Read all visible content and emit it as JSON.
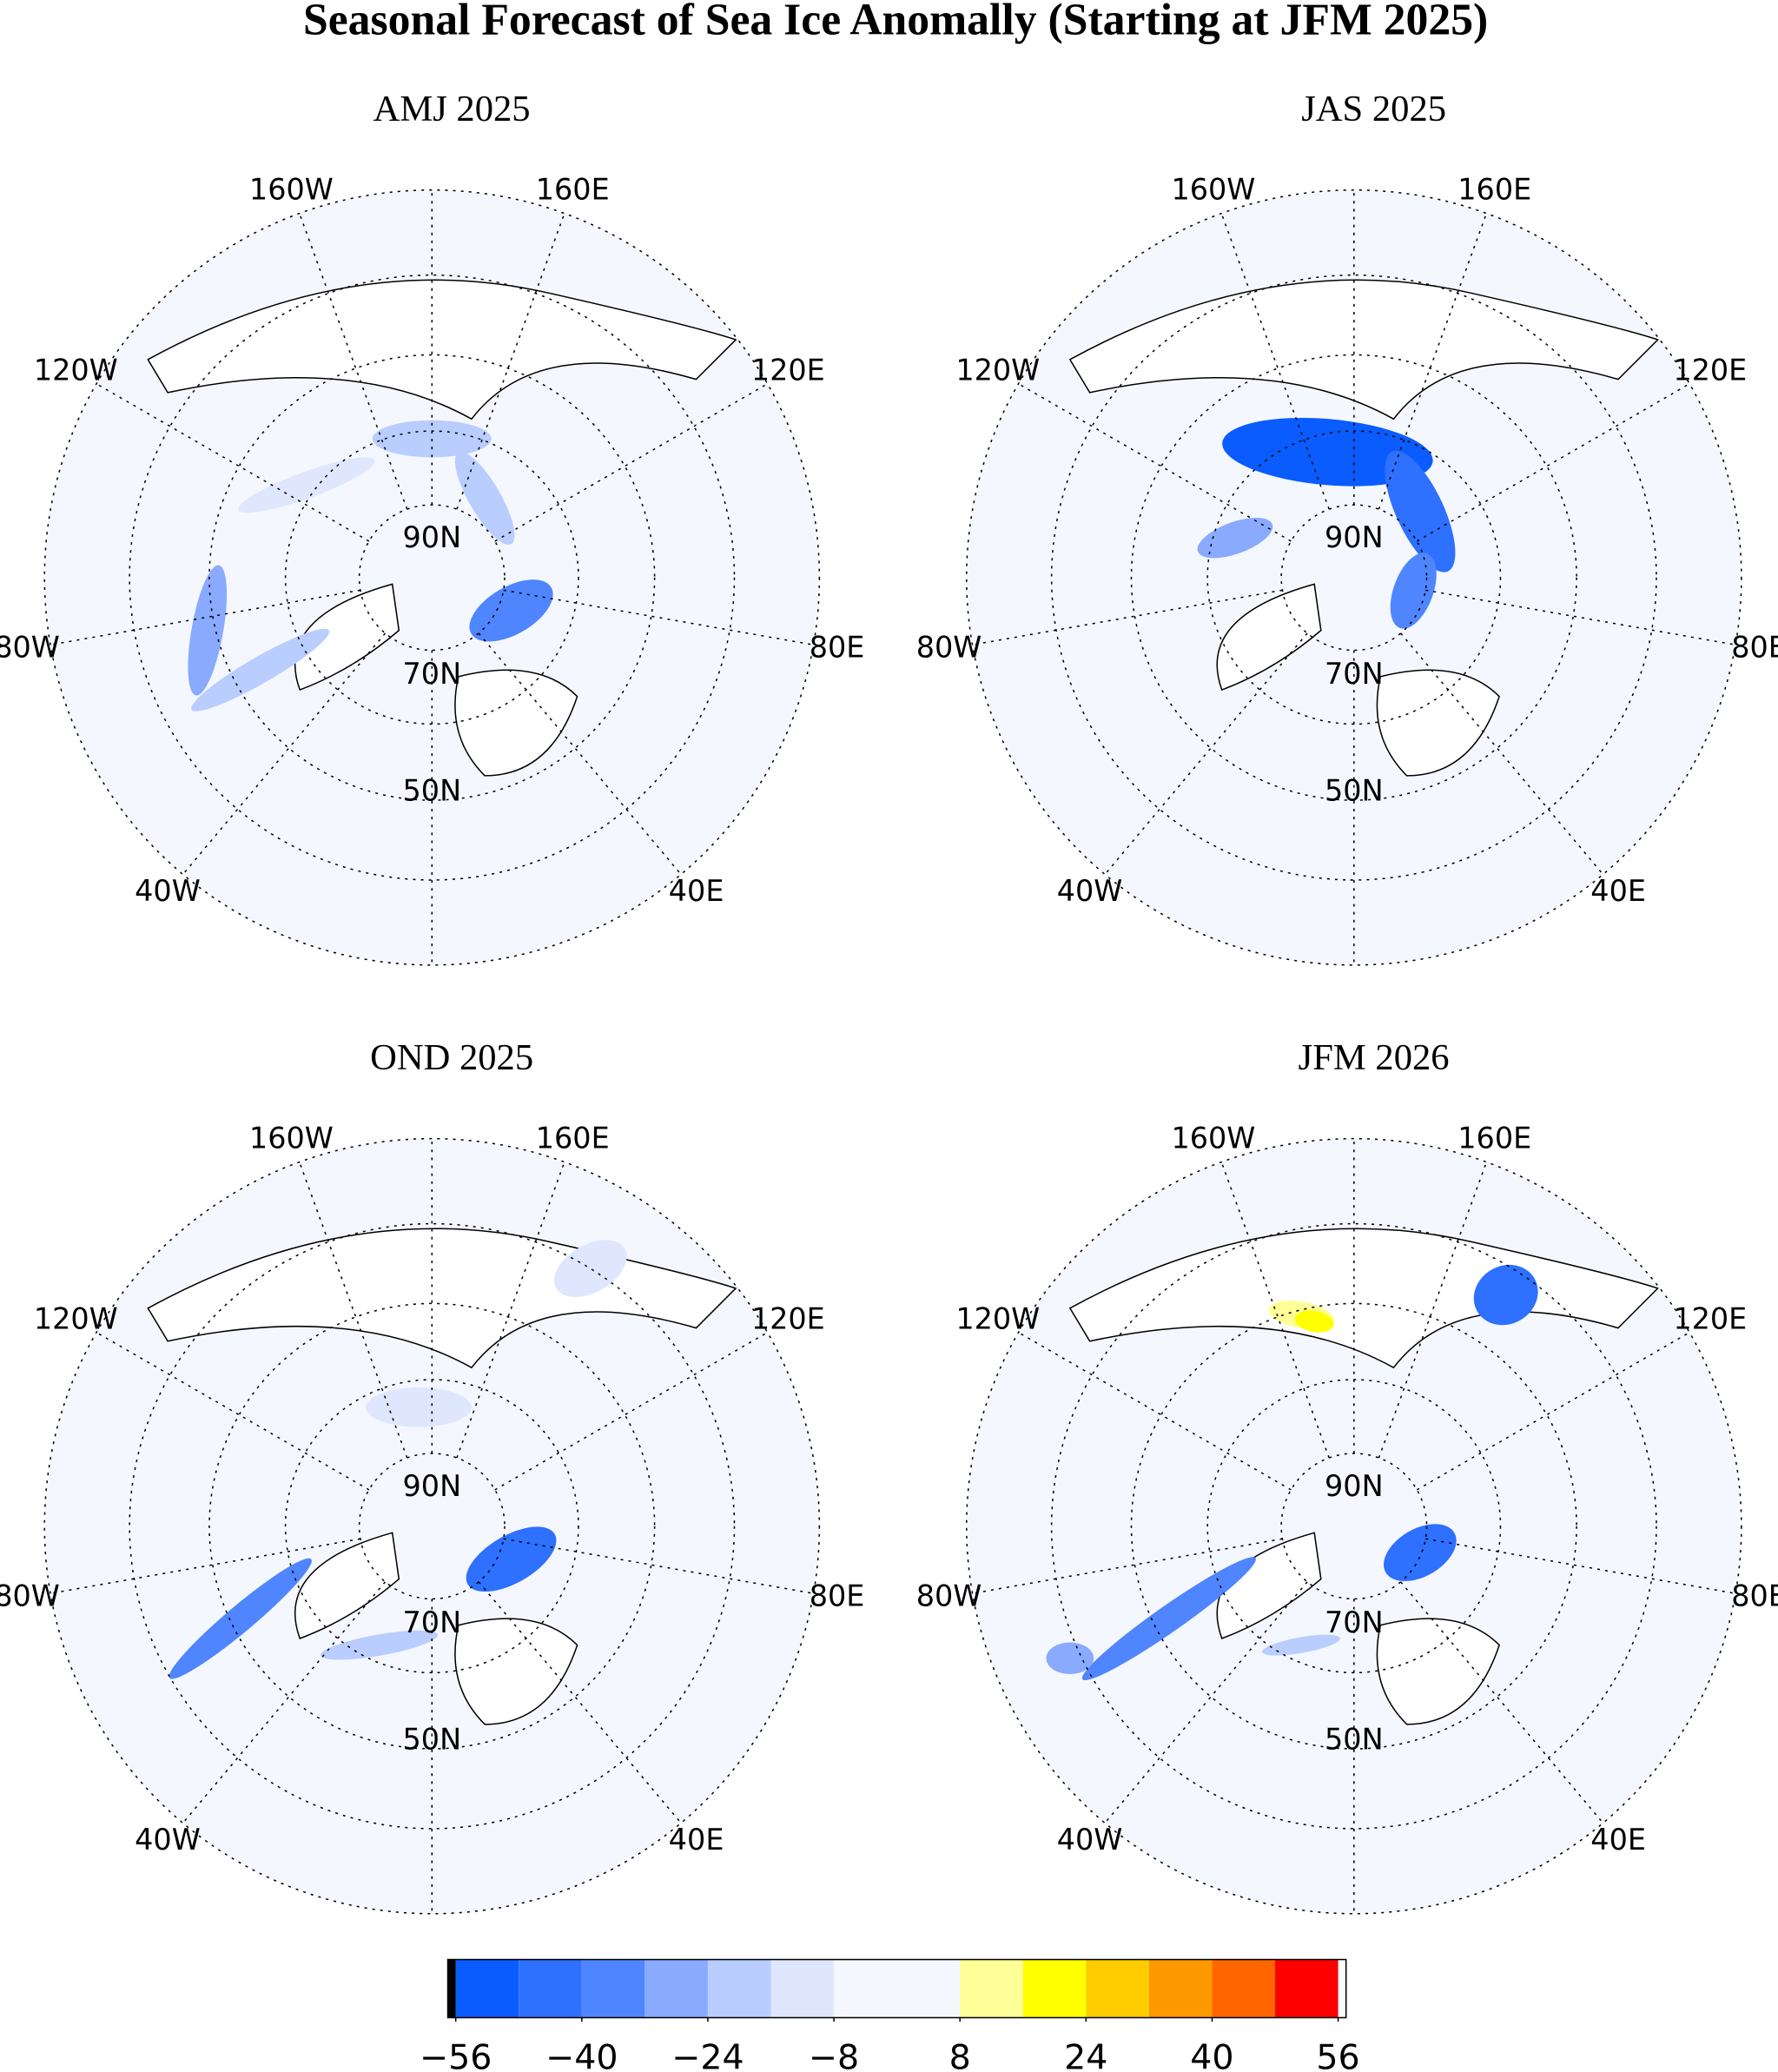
{
  "title": "Seasonal Forecast of Sea Ice Anomally (Starting at JFM 2025)",
  "panels": [
    {
      "title": "AMJ 2025"
    },
    {
      "title": "JAS 2025"
    },
    {
      "title": "OND 2025"
    },
    {
      "title": "JFM 2026"
    }
  ],
  "map": {
    "lat_labels": [
      "90N",
      "70N",
      "50N"
    ],
    "lon_labels": [
      "160W",
      "160E",
      "120W",
      "120E",
      "80W",
      "80E",
      "40W",
      "40E"
    ]
  },
  "colorbar": {
    "levels": [
      -56,
      -48,
      -40,
      -32,
      -24,
      -16,
      -8,
      0,
      8,
      16,
      24,
      32,
      40,
      48,
      56
    ],
    "colors": [
      "#0a5cff",
      "#2e70ff",
      "#4f86ff",
      "#89aaff",
      "#b9cdff",
      "#dfe7ff",
      "#f5f7ff",
      "#f5f7ff",
      "#ffff99",
      "#ffff00",
      "#ffcc00",
      "#ff9900",
      "#ff6600",
      "#ff0000"
    ],
    "ticks": [
      {
        "value": -56,
        "label": "−56"
      },
      {
        "value": -40,
        "label": "−40"
      },
      {
        "value": -24,
        "label": "−24"
      },
      {
        "value": -8,
        "label": "−8"
      },
      8,
      24,
      40,
      56
    ]
  }
}
